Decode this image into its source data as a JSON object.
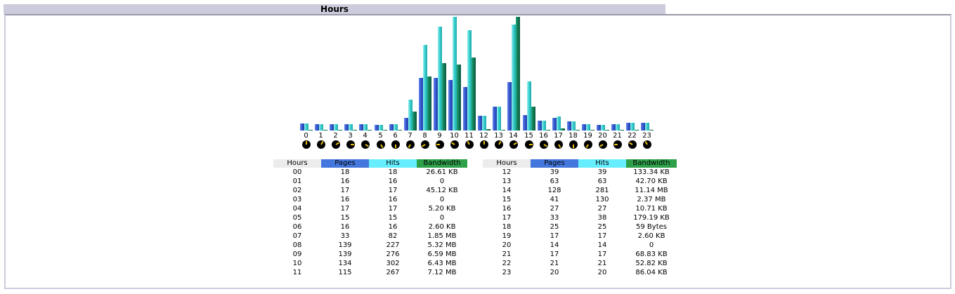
{
  "section_title": "Hours",
  "colors": {
    "pages": "#4477dd",
    "hits": "#66eeff",
    "bandwidth": "#2ea04a",
    "hours_header": "#ececec",
    "title_bar": "#ccccdd"
  },
  "table_headers": {
    "hours": "Hours",
    "pages": "Pages",
    "hits": "Hits",
    "bandwidth": "Bandwidth"
  },
  "rows_left": [
    {
      "hour": "00",
      "pages": "18",
      "hits": "18",
      "bandwidth": "26.61 KB"
    },
    {
      "hour": "01",
      "pages": "16",
      "hits": "16",
      "bandwidth": "0"
    },
    {
      "hour": "02",
      "pages": "17",
      "hits": "17",
      "bandwidth": "45.12 KB"
    },
    {
      "hour": "03",
      "pages": "16",
      "hits": "16",
      "bandwidth": "0"
    },
    {
      "hour": "04",
      "pages": "17",
      "hits": "17",
      "bandwidth": "5.20 KB"
    },
    {
      "hour": "05",
      "pages": "15",
      "hits": "15",
      "bandwidth": "0"
    },
    {
      "hour": "06",
      "pages": "16",
      "hits": "16",
      "bandwidth": "2.60 KB"
    },
    {
      "hour": "07",
      "pages": "33",
      "hits": "82",
      "bandwidth": "1.85 MB"
    },
    {
      "hour": "08",
      "pages": "139",
      "hits": "227",
      "bandwidth": "5.32 MB"
    },
    {
      "hour": "09",
      "pages": "139",
      "hits": "276",
      "bandwidth": "6.59 MB"
    },
    {
      "hour": "10",
      "pages": "134",
      "hits": "302",
      "bandwidth": "6.43 MB"
    },
    {
      "hour": "11",
      "pages": "115",
      "hits": "267",
      "bandwidth": "7.12 MB"
    }
  ],
  "rows_right": [
    {
      "hour": "12",
      "pages": "39",
      "hits": "39",
      "bandwidth": "133.34 KB"
    },
    {
      "hour": "13",
      "pages": "63",
      "hits": "63",
      "bandwidth": "42.70 KB"
    },
    {
      "hour": "14",
      "pages": "128",
      "hits": "281",
      "bandwidth": "11.14 MB"
    },
    {
      "hour": "15",
      "pages": "41",
      "hits": "130",
      "bandwidth": "2.37 MB"
    },
    {
      "hour": "16",
      "pages": "27",
      "hits": "27",
      "bandwidth": "10.71 KB"
    },
    {
      "hour": "17",
      "pages": "33",
      "hits": "38",
      "bandwidth": "179.19 KB"
    },
    {
      "hour": "18",
      "pages": "25",
      "hits": "25",
      "bandwidth": "59 Bytes"
    },
    {
      "hour": "19",
      "pages": "17",
      "hits": "17",
      "bandwidth": "2.60 KB"
    },
    {
      "hour": "20",
      "pages": "14",
      "hits": "14",
      "bandwidth": "0"
    },
    {
      "hour": "21",
      "pages": "17",
      "hits": "17",
      "bandwidth": "68.83 KB"
    },
    {
      "hour": "22",
      "pages": "21",
      "hits": "21",
      "bandwidth": "52.82 KB"
    },
    {
      "hour": "23",
      "pages": "20",
      "hits": "20",
      "bandwidth": "86.04 KB"
    }
  ],
  "chart_data": {
    "type": "bar",
    "title": "Hours",
    "xlabel": "Hours",
    "ylabel": "",
    "categories": [
      "0",
      "1",
      "2",
      "3",
      "4",
      "5",
      "6",
      "7",
      "8",
      "9",
      "10",
      "11",
      "12",
      "13",
      "14",
      "15",
      "16",
      "17",
      "18",
      "19",
      "20",
      "21",
      "22",
      "23"
    ],
    "series": [
      {
        "name": "Pages",
        "values": [
          18,
          16,
          17,
          16,
          17,
          15,
          16,
          33,
          139,
          139,
          134,
          115,
          39,
          63,
          128,
          41,
          27,
          33,
          25,
          17,
          14,
          17,
          21,
          20
        ]
      },
      {
        "name": "Hits",
        "values": [
          18,
          16,
          17,
          16,
          17,
          15,
          16,
          82,
          227,
          276,
          302,
          267,
          39,
          63,
          281,
          130,
          27,
          38,
          25,
          17,
          14,
          17,
          21,
          20
        ]
      },
      {
        "name": "Bandwidth (KB)",
        "values": [
          26.61,
          0,
          45.12,
          0,
          5.2,
          0,
          2.6,
          1894.4,
          5447.68,
          6748.16,
          6584.32,
          7290.88,
          133.34,
          42.7,
          11407.36,
          2426.88,
          10.71,
          179.19,
          0.06,
          2.6,
          0,
          68.83,
          52.82,
          86.04
        ]
      }
    ],
    "legend": [
      "Pages",
      "Hits",
      "Bandwidth"
    ],
    "grid": false
  }
}
